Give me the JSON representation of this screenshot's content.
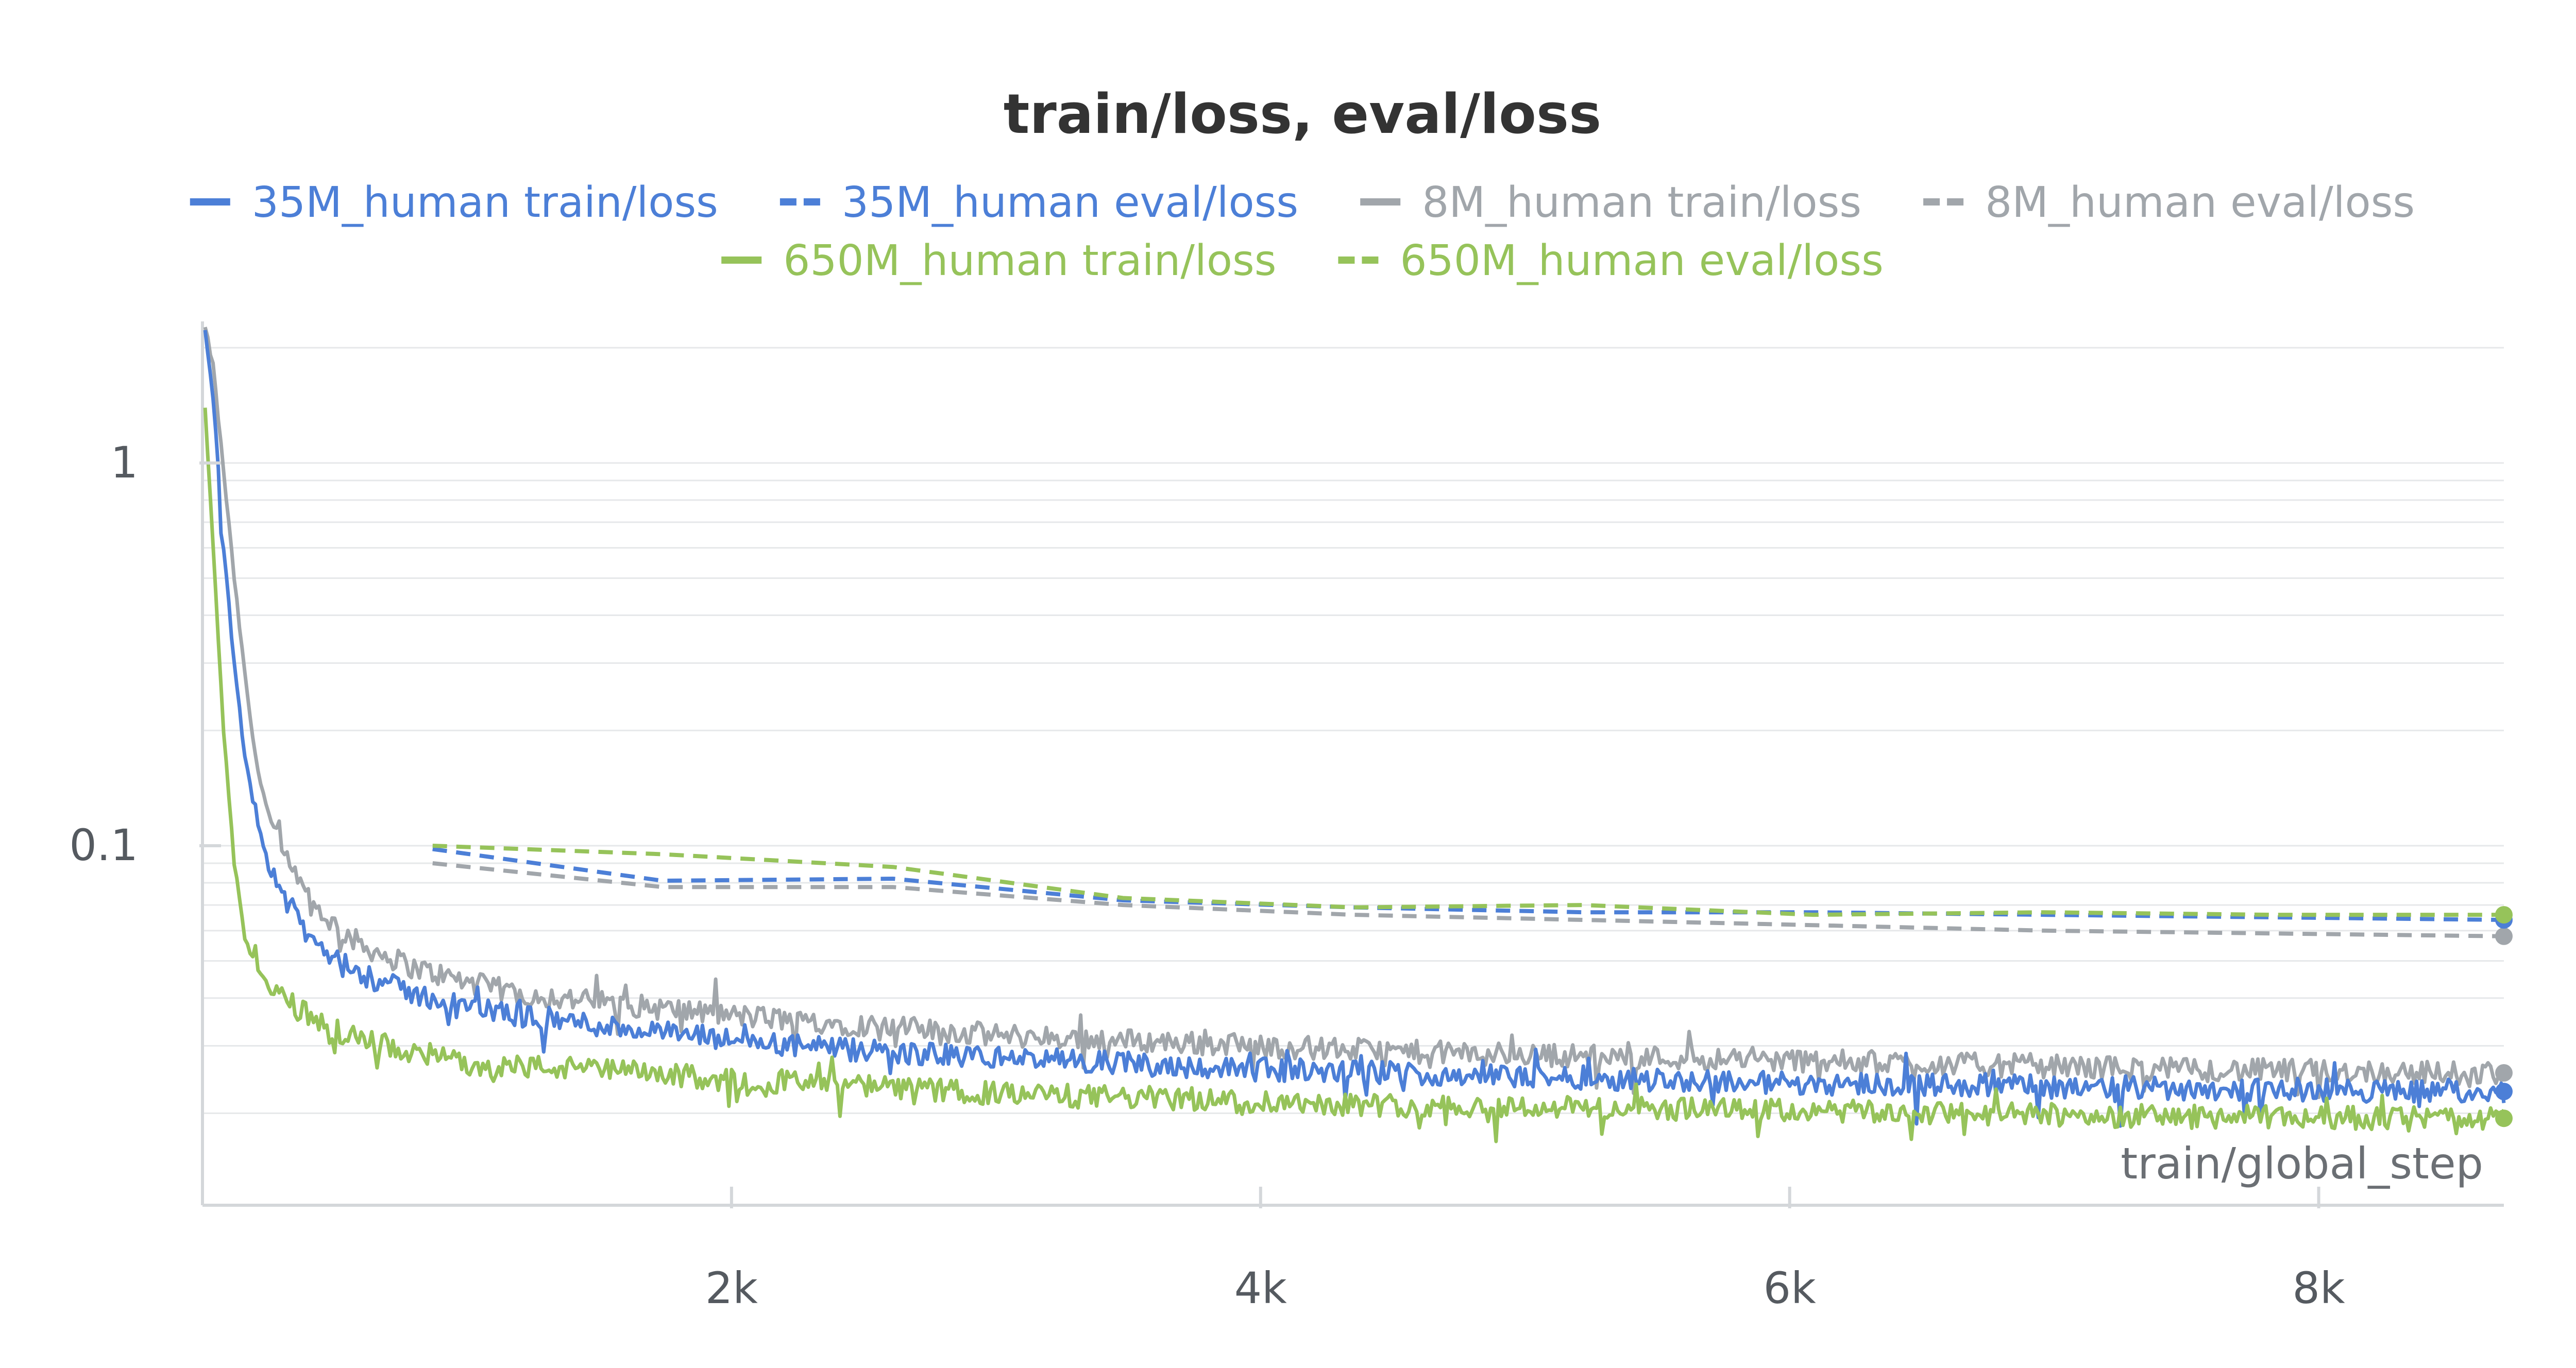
{
  "chart_data": {
    "type": "line",
    "title": "train/loss, eval/loss",
    "xlabel": "train/global_step",
    "ylabel": "",
    "y_scale": "log",
    "xlim": [
      0,
      8700
    ],
    "ylim": [
      0.0115,
      2.3
    ],
    "x_ticks": [
      {
        "value": 2000,
        "label": "2k"
      },
      {
        "value": 4000,
        "label": "4k"
      },
      {
        "value": 6000,
        "label": "6k"
      },
      {
        "value": 8000,
        "label": "8k"
      }
    ],
    "y_ticks": [
      {
        "value": 1,
        "label": "1"
      },
      {
        "value": 0.1,
        "label": "0.1"
      }
    ],
    "grid": true,
    "legend_position": "top-center",
    "series": [
      {
        "name": "35M_human train/loss",
        "style": "solid",
        "color": "#4c7fd7",
        "x": [
          10,
          40,
          80,
          120,
          160,
          200,
          250,
          300,
          400,
          500,
          600,
          800,
          1000,
          1200,
          1500,
          2000,
          2500,
          3000,
          3500,
          4000,
          4500,
          5000,
          5500,
          6000,
          6500,
          7000,
          7500,
          8000,
          8500,
          8700
        ],
        "y": [
          2.2,
          1.5,
          0.6,
          0.3,
          0.17,
          0.12,
          0.09,
          0.075,
          0.058,
          0.05,
          0.046,
          0.041,
          0.038,
          0.036,
          0.034,
          0.031,
          0.029,
          0.028,
          0.027,
          0.026,
          0.0255,
          0.025,
          0.0245,
          0.024,
          0.0238,
          0.0235,
          0.0232,
          0.023,
          0.0228,
          0.0228
        ]
      },
      {
        "name": "35M_human eval/loss",
        "style": "dashed",
        "color": "#4c7fd7",
        "x": [
          870,
          1740,
          2610,
          3480,
          4350,
          5220,
          6090,
          6960,
          7830,
          8700
        ],
        "y": [
          0.098,
          0.081,
          0.082,
          0.072,
          0.069,
          0.067,
          0.067,
          0.066,
          0.065,
          0.064
        ]
      },
      {
        "name": "8M_human train/loss",
        "style": "solid",
        "color": "#a1a6ab",
        "x": [
          10,
          40,
          80,
          120,
          160,
          200,
          250,
          300,
          400,
          500,
          600,
          800,
          1000,
          1200,
          1500,
          2000,
          2500,
          3000,
          3500,
          4000,
          4500,
          5000,
          5500,
          6000,
          6500,
          7000,
          7500,
          8000,
          8500,
          8700
        ],
        "y": [
          2.25,
          1.8,
          0.95,
          0.5,
          0.28,
          0.17,
          0.12,
          0.095,
          0.072,
          0.062,
          0.055,
          0.048,
          0.044,
          0.041,
          0.039,
          0.036,
          0.034,
          0.032,
          0.031,
          0.03,
          0.029,
          0.0285,
          0.028,
          0.0275,
          0.027,
          0.0265,
          0.026,
          0.0258,
          0.0255,
          0.0255
        ]
      },
      {
        "name": "8M_human eval/loss",
        "style": "dashed",
        "color": "#a1a6ab",
        "x": [
          870,
          1740,
          2610,
          3480,
          4350,
          5220,
          6090,
          6960,
          7830,
          8700
        ],
        "y": [
          0.09,
          0.078,
          0.078,
          0.07,
          0.066,
          0.064,
          0.062,
          0.06,
          0.059,
          0.058
        ]
      },
      {
        "name": "650M_human train/loss",
        "style": "solid",
        "color": "#96c35a",
        "x": [
          10,
          40,
          80,
          120,
          160,
          200,
          250,
          300,
          400,
          500,
          600,
          800,
          1000,
          1200,
          1500,
          2000,
          2500,
          3000,
          3500,
          4000,
          4500,
          5000,
          5500,
          6000,
          6500,
          7000,
          7500,
          8000,
          8500,
          8700
        ],
        "y": [
          1.4,
          0.6,
          0.2,
          0.09,
          0.058,
          0.048,
          0.043,
          0.04,
          0.036,
          0.033,
          0.031,
          0.029,
          0.027,
          0.0265,
          0.026,
          0.0245,
          0.0235,
          0.0225,
          0.022,
          0.0215,
          0.021,
          0.0208,
          0.0205,
          0.0203,
          0.02,
          0.0198,
          0.0196,
          0.0195,
          0.0194,
          0.0194
        ]
      },
      {
        "name": "650M_human eval/loss",
        "style": "dashed",
        "color": "#96c35a",
        "x": [
          870,
          1740,
          2610,
          3480,
          4350,
          5220,
          6090,
          6960,
          7830,
          8700
        ],
        "y": [
          0.1,
          0.095,
          0.088,
          0.073,
          0.069,
          0.07,
          0.066,
          0.067,
          0.066,
          0.066
        ]
      }
    ]
  }
}
